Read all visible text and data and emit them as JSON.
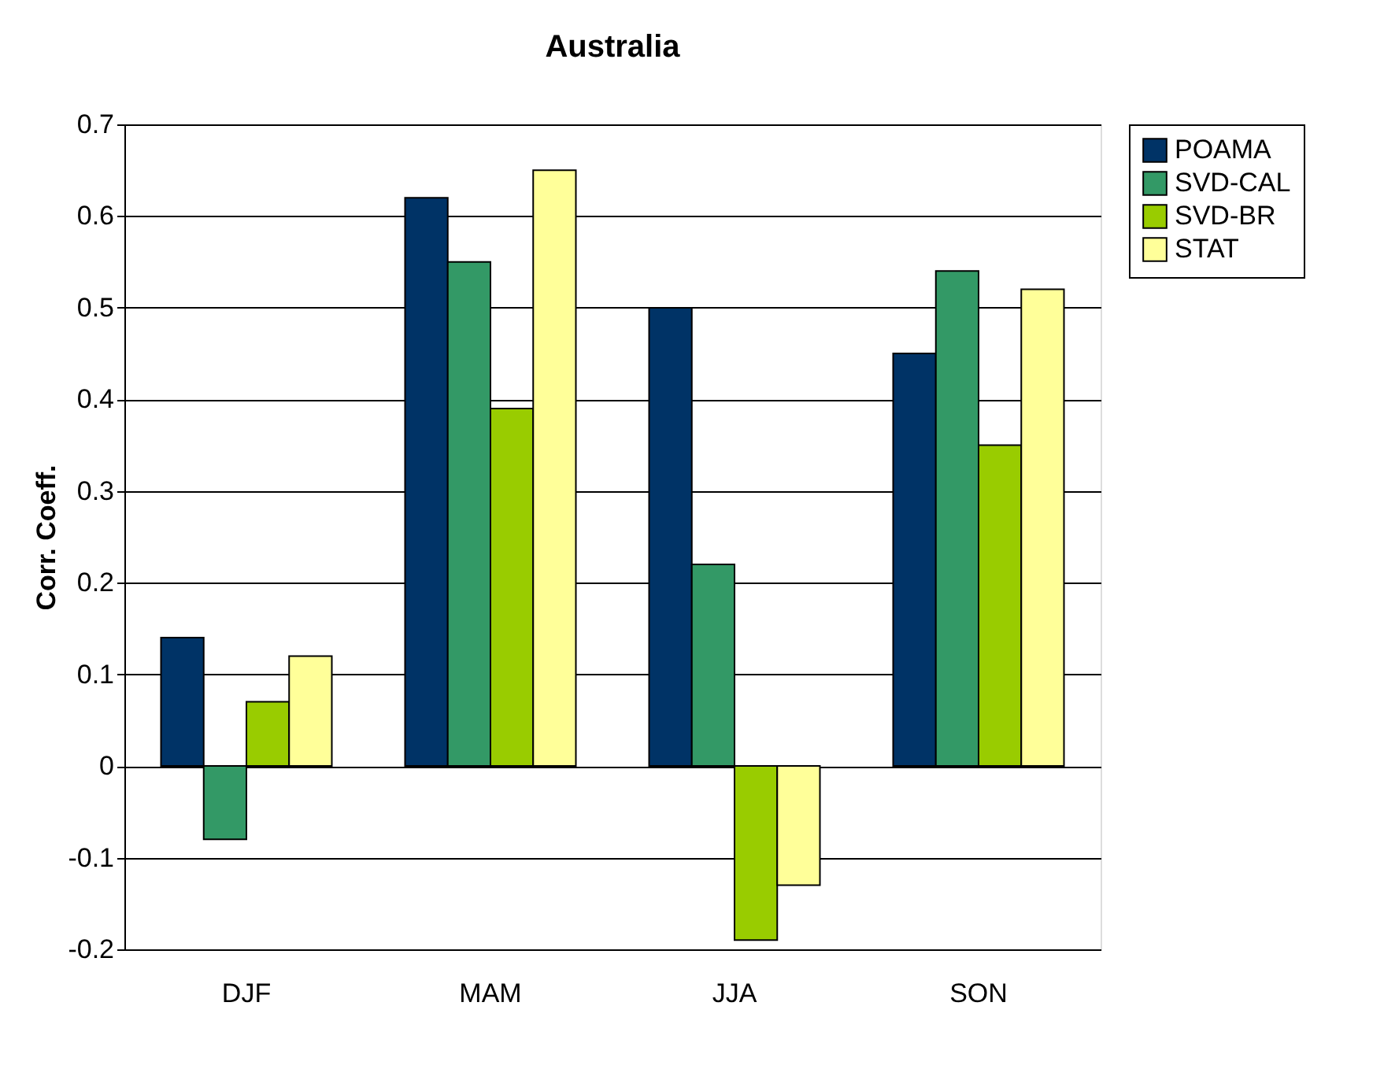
{
  "chart_data": {
    "type": "bar",
    "title": "Australia",
    "ylabel": "Corr. Coeff.",
    "categories": [
      "DJF",
      "MAM",
      "JJA",
      "SON"
    ],
    "series": [
      {
        "name": "POAMA",
        "color": "#003366",
        "values": [
          0.14,
          0.62,
          0.5,
          0.45
        ]
      },
      {
        "name": "SVD-CAL",
        "color": "#339966",
        "values": [
          -0.08,
          0.55,
          0.22,
          0.54
        ]
      },
      {
        "name": "SVD-BR",
        "color": "#99cc00",
        "values": [
          0.07,
          0.39,
          -0.19,
          0.35
        ]
      },
      {
        "name": "STAT",
        "color": "#ffff99",
        "values": [
          0.12,
          0.65,
          -0.13,
          0.52
        ]
      }
    ],
    "ylim": [
      -0.2,
      0.7
    ],
    "yticks": [
      -0.2,
      -0.1,
      0,
      0.1,
      0.2,
      0.3,
      0.4,
      0.5,
      0.6,
      0.7
    ],
    "grid": "y",
    "legend": "right"
  }
}
